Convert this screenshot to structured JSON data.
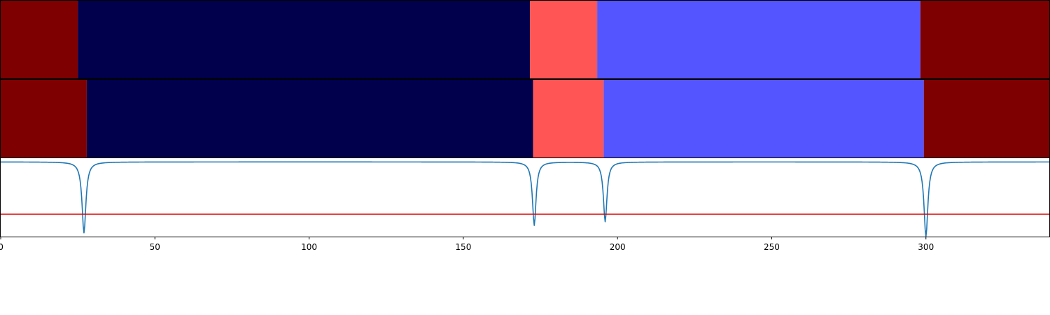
{
  "chart_data": [
    {
      "type": "heatmap",
      "row": 1,
      "xlim": [
        0,
        340
      ],
      "segments": [
        {
          "start": 0,
          "end": 25,
          "color": "#7f0000"
        },
        {
          "start": 25,
          "end": 171.6,
          "color": "#00004d"
        },
        {
          "start": 171.6,
          "end": 193.4,
          "color": "#ff5555"
        },
        {
          "start": 193.4,
          "end": 298.2,
          "color": "#5555ff"
        },
        {
          "start": 298.2,
          "end": 340,
          "color": "#7f0000"
        }
      ]
    },
    {
      "type": "heatmap",
      "row": 2,
      "xlim": [
        0,
        340
      ],
      "segments": [
        {
          "start": 0,
          "end": 27.9,
          "color": "#7f0000"
        },
        {
          "start": 27.9,
          "end": 172.6,
          "color": "#00004d"
        },
        {
          "start": 172.6,
          "end": 195.5,
          "color": "#ff5555"
        },
        {
          "start": 195.5,
          "end": 299.3,
          "color": "#5555ff"
        },
        {
          "start": 299.3,
          "end": 340,
          "color": "#7f0000"
        }
      ]
    },
    {
      "type": "line",
      "xlim": [
        0,
        340
      ],
      "ylim": [
        -1.0,
        0.05
      ],
      "series": [
        {
          "color": "#1f77b4",
          "baseline": 0,
          "dips": [
            {
              "x": 27,
              "depth": 0.95,
              "width": 0.75
            },
            {
              "x": 173,
              "depth": 0.85,
              "width": 0.7
            },
            {
              "x": 196,
              "depth": 0.8,
              "width": 0.7
            },
            {
              "x": 300,
              "depth": 1.0,
              "width": 0.75
            }
          ]
        },
        {
          "color": "#dd0000",
          "constant": -0.7
        }
      ],
      "xticks": [
        0,
        50,
        100,
        150,
        200,
        250,
        300
      ]
    }
  ]
}
